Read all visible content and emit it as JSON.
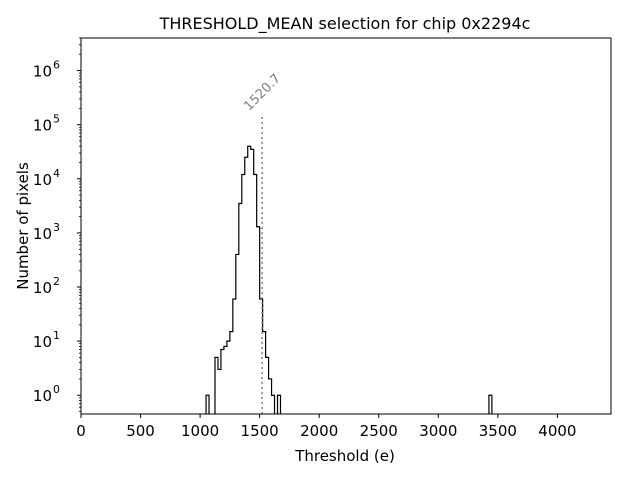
{
  "chart_data": {
    "type": "histogram",
    "title": "THRESHOLD_MEAN selection for chip 0x2294c",
    "xlabel": "Threshold (e)",
    "ylabel": "Number of pixels",
    "xlim": [
      0,
      4450
    ],
    "xticks": [
      0,
      500,
      1000,
      1500,
      2000,
      2500,
      3000,
      3500,
      4000
    ],
    "xtick_labels": [
      "0",
      "500",
      "1000",
      "1500",
      "2000",
      "2500",
      "3000",
      "3500",
      "4000"
    ],
    "yscale": "log",
    "ylim": [
      0.45,
      4000000
    ],
    "yticks": [
      {
        "base": "10",
        "exp": "0",
        "value": 1
      },
      {
        "base": "10",
        "exp": "1",
        "value": 10
      },
      {
        "base": "10",
        "exp": "2",
        "value": 100
      },
      {
        "base": "10",
        "exp": "3",
        "value": 1000
      },
      {
        "base": "10",
        "exp": "4",
        "value": 10000
      },
      {
        "base": "10",
        "exp": "5",
        "value": 100000
      },
      {
        "base": "10",
        "exp": "6",
        "value": 1000000
      }
    ],
    "bin_width": 25,
    "bins": [
      {
        "x": 1050,
        "count": 1
      },
      {
        "x": 1075,
        "count": 0
      },
      {
        "x": 1100,
        "count": 0
      },
      {
        "x": 1125,
        "count": 5
      },
      {
        "x": 1150,
        "count": 3
      },
      {
        "x": 1175,
        "count": 7
      },
      {
        "x": 1200,
        "count": 8
      },
      {
        "x": 1225,
        "count": 10
      },
      {
        "x": 1250,
        "count": 15
      },
      {
        "x": 1275,
        "count": 60
      },
      {
        "x": 1300,
        "count": 400
      },
      {
        "x": 1325,
        "count": 3500
      },
      {
        "x": 1350,
        "count": 12000
      },
      {
        "x": 1375,
        "count": 25000
      },
      {
        "x": 1400,
        "count": 40000
      },
      {
        "x": 1425,
        "count": 35000
      },
      {
        "x": 1450,
        "count": 12000
      },
      {
        "x": 1475,
        "count": 1300
      },
      {
        "x": 1500,
        "count": 60
      },
      {
        "x": 1525,
        "count": 15
      },
      {
        "x": 1550,
        "count": 5
      },
      {
        "x": 1575,
        "count": 2
      },
      {
        "x": 1600,
        "count": 1
      },
      {
        "x": 1625,
        "count": 0
      },
      {
        "x": 1650,
        "count": 1
      },
      {
        "x": 3425,
        "count": 1
      }
    ],
    "annotation": {
      "x": 1520.7,
      "label": "1520.7",
      "top": 150000
    },
    "grid": false
  }
}
